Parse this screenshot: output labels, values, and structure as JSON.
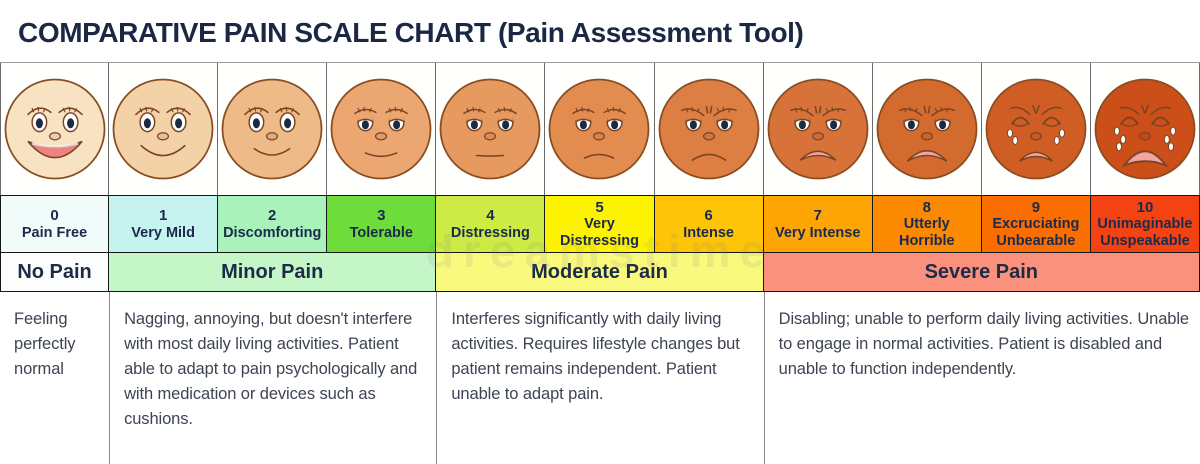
{
  "title": "COMPARATIVE PAIN SCALE CHART (Pain Assessment Tool)",
  "watermark": "dreamstime",
  "colors": {
    "title_text": "#1b2844",
    "scale_text": "#1b2a4c",
    "description_text": "#3d4452",
    "face_outline": "#8a4d22",
    "feature_line": "#7b4422",
    "pupil": "#1c2a44",
    "mouth_pink": "#f2a3a3",
    "mouth_red": "#ef8181"
  },
  "scale": [
    {
      "value": "0",
      "label": "Pain Free",
      "cell_color": "#f0fbfa",
      "skin": "#f7e3c2",
      "expression": "beaming-smile"
    },
    {
      "value": "1",
      "label": "Very Mild",
      "cell_color": "#c6f3f0",
      "skin": "#f3d2a7",
      "expression": "smiling"
    },
    {
      "value": "2",
      "label": "Discomforting",
      "cell_color": "#a9f2ba",
      "skin": "#edba88",
      "expression": "slight-smile"
    },
    {
      "value": "3",
      "label": "Tolerable",
      "cell_color": "#6edc3a",
      "skin": "#eba671",
      "expression": "content"
    },
    {
      "value": "4",
      "label": "Distressing",
      "cell_color": "#cdea45",
      "skin": "#e79a60",
      "expression": "neutral"
    },
    {
      "value": "5",
      "label": "Very Distressing",
      "cell_color": "#fdf300",
      "skin": "#e28c50",
      "expression": "slight-frown"
    },
    {
      "value": "6",
      "label": "Intense",
      "cell_color": "#fdc408",
      "skin": "#dd7e43",
      "expression": "frowning"
    },
    {
      "value": "7",
      "label": "Very Intense",
      "cell_color": "#fca504",
      "skin": "#d77338",
      "expression": "distressed"
    },
    {
      "value": "8",
      "label": "Utterly Horrible",
      "cell_color": "#fb8902",
      "skin": "#d36a2e",
      "expression": "grimacing"
    },
    {
      "value": "9",
      "label": "Excruciating Unbearable",
      "cell_color": "#fa6d00",
      "skin": "#d05e24",
      "expression": "crying"
    },
    {
      "value": "10",
      "label": "Unimaginable Unspeakable",
      "cell_color": "#f44313",
      "skin": "#cc4e18",
      "expression": "sobbing"
    }
  ],
  "categories": [
    {
      "label": "No Pain",
      "color": "#fcfefe",
      "span": 1,
      "description": "Feeling perfectly normal"
    },
    {
      "label": "Minor Pain",
      "color": "#c5f6c8",
      "span": 3,
      "description": "Nagging, annoying, but doesn't interfere with most daily living activities. Patient able to adapt to pain psychologically and with medication or devices such as cushions."
    },
    {
      "label": "Moderate Pain",
      "color": "#f9f97e",
      "span": 3,
      "description": "Interferes significantly with daily living activities. Requires lifestyle changes but patient remains independent. Patient unable to adapt pain."
    },
    {
      "label": "Severe Pain",
      "color": "#f9917d",
      "span": 4,
      "description": "Disabling; unable to perform daily living activities. Unable to engage in normal activities. Patient is disabled and unable to function independently."
    }
  ]
}
